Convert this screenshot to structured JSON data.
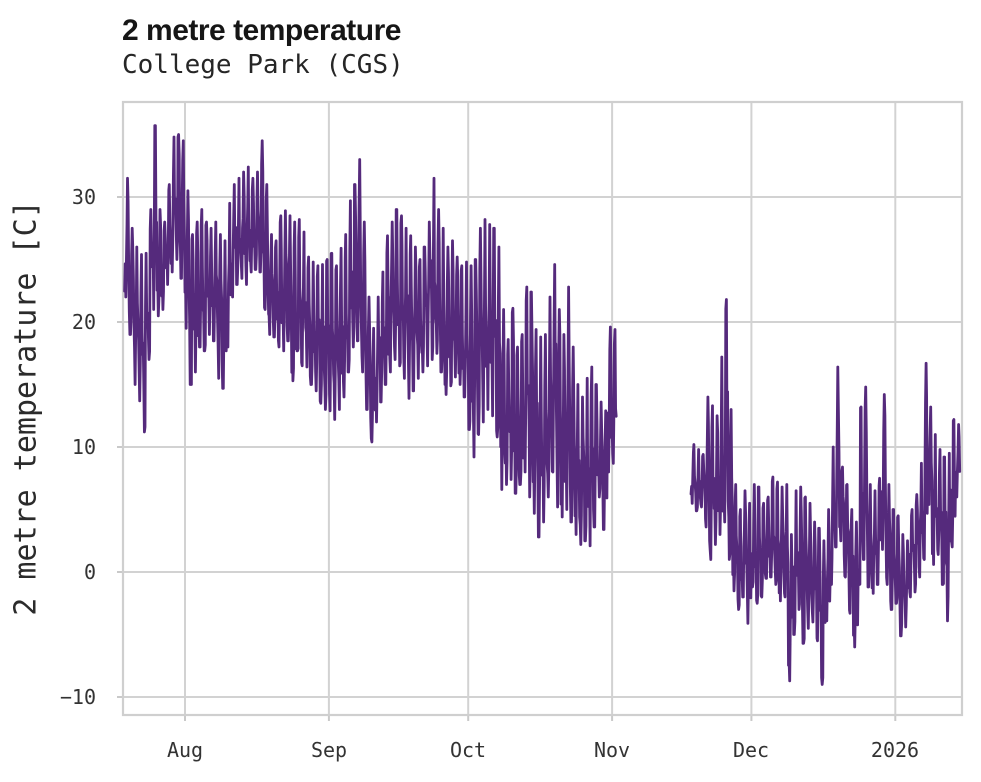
{
  "header": {
    "title": "2 metre temperature",
    "subtitle": "College Park (CGS)"
  },
  "chart_data": {
    "type": "line",
    "title": "2 metre temperature",
    "subtitle": "College Park (CGS)",
    "series_name": "2 metre temperature at College Park (CGS)",
    "units": "C",
    "xlabel": "",
    "ylabel": "2 metre temperature [C]",
    "x_tick_labels": [
      "Aug",
      "Sep",
      "Oct",
      "Nov",
      "Dec",
      "2026"
    ],
    "y_ticks": [
      30,
      20,
      10,
      0,
      -10
    ],
    "y_tick_labels": [
      "30",
      "20",
      "10",
      "0",
      "−10"
    ],
    "ylim": [
      -11.4,
      37.7
    ],
    "x_start_date": "2025-07-19",
    "x_end_date": "2026-01-14",
    "data_gap": {
      "from": "2025-11-02",
      "to": "2025-11-17"
    },
    "grid": true,
    "legend": "none",
    "line_color": "#552a7c",
    "grid_color": "#d2d2d2",
    "text_color": "#333333",
    "sampling": "sub-daily (diurnal cycle) readings summarized below as daily min/max",
    "daily_min": [
      22,
      19,
      15,
      13.7,
      11.2,
      17,
      21,
      20.5,
      21,
      23,
      24,
      25,
      23.5,
      19.5,
      15,
      16,
      18,
      17.7,
      19,
      18.5,
      15.5,
      14.7,
      18,
      22,
      23,
      23.5,
      23,
      24,
      24.2,
      24,
      21,
      19,
      18.8,
      18,
      17.7,
      18.5,
      15.3,
      17.7,
      16.5,
      16.4,
      15,
      14.5,
      13.5,
      13,
      12.9,
      12.2,
      13,
      14,
      16,
      18,
      18.5,
      16,
      13,
      10.4,
      12,
      13.6,
      15,
      16,
      17,
      16.5,
      15.5,
      13.9,
      14.5,
      15.5,
      16,
      16.5,
      17,
      17.5,
      16,
      14.2,
      14.9,
      15.6,
      15,
      14,
      11.4,
      9.2,
      11,
      12,
      13,
      12.5,
      10.8,
      6.6,
      7,
      7.4,
      6.3,
      7,
      8,
      6,
      4.7,
      2.8,
      4,
      6,
      8,
      5.2,
      4.4,
      5,
      4,
      3,
      2.2,
      2.5,
      2.1,
      3.6,
      6,
      3.4,
      8,
      8.7,
      null,
      null,
      null,
      null,
      null,
      null,
      null,
      null,
      null,
      null,
      null,
      null,
      null,
      null,
      null,
      null,
      5.5,
      4.9,
      5.2,
      3.6,
      1,
      2.2,
      3,
      4,
      1,
      -1.5,
      -3,
      -2,
      -4.1,
      -1.2,
      -2.5,
      -2,
      -0.5,
      -0.4,
      -1,
      -2.3,
      -2,
      -8.7,
      -5,
      -3,
      -5.7,
      -4.5,
      -4,
      -5.5,
      -9,
      -3.9,
      -1,
      2,
      2.5,
      -0.4,
      -3.3,
      -6,
      -1,
      1,
      -1.2,
      -1.7,
      -1,
      1.8,
      -1,
      -3,
      -2.5,
      -5.1,
      -4.4,
      -2,
      -1.6,
      -0.4,
      1,
      5.4,
      0.6,
      1.4,
      -1,
      -3.9,
      2,
      6
    ],
    "daily_max": [
      31.5,
      27.5,
      26,
      25.4,
      25.5,
      29,
      35.7,
      29,
      28,
      31,
      34.8,
      35,
      34.5,
      30.5,
      27,
      28,
      29,
      28,
      27.5,
      28,
      27,
      26.5,
      29.5,
      31,
      31.5,
      32,
      32.4,
      31.5,
      32,
      34.5,
      31,
      27,
      26.5,
      28.5,
      28.9,
      28.5,
      28,
      28.2,
      27.2,
      25.2,
      24.8,
      24.5,
      24.6,
      25,
      25.5,
      24.5,
      25.9,
      27,
      29.7,
      31,
      33,
      28,
      22,
      19.5,
      22,
      24,
      26.9,
      28,
      29,
      28.5,
      27.5,
      26.9,
      26,
      25,
      26,
      28,
      31.5,
      29,
      27.5,
      26,
      26.5,
      25.2,
      24.5,
      24.8,
      24.5,
      25,
      27.5,
      28.2,
      27.8,
      27.5,
      26,
      21,
      18.6,
      21.1,
      18,
      19,
      22.8,
      22.4,
      19.4,
      18.8,
      19,
      22,
      24.6,
      21,
      19,
      22.8,
      18,
      15,
      14,
      15.5,
      16.4,
      15,
      13.6,
      12.9,
      19.6,
      19.4,
      null,
      null,
      null,
      null,
      null,
      null,
      null,
      null,
      null,
      null,
      null,
      null,
      null,
      null,
      null,
      null,
      10.2,
      9.8,
      9.4,
      14,
      13.3,
      12.5,
      17.2,
      21.8,
      13,
      7,
      5,
      6.5,
      5.5,
      7,
      6.8,
      5.5,
      6,
      7.6,
      7.2,
      6.8,
      7,
      3,
      6.5,
      6.8,
      6,
      5.5,
      4,
      3.5,
      2.5,
      5,
      10,
      16.4,
      8.4,
      7,
      5,
      4,
      13.2,
      14.8,
      7,
      6.5,
      7.5,
      14.2,
      7,
      5,
      4.5,
      3,
      2.5,
      5,
      6.2,
      8.7,
      16.7,
      13.2,
      11,
      9.8,
      9.2,
      9.5,
      12.2,
      11.8
    ]
  }
}
